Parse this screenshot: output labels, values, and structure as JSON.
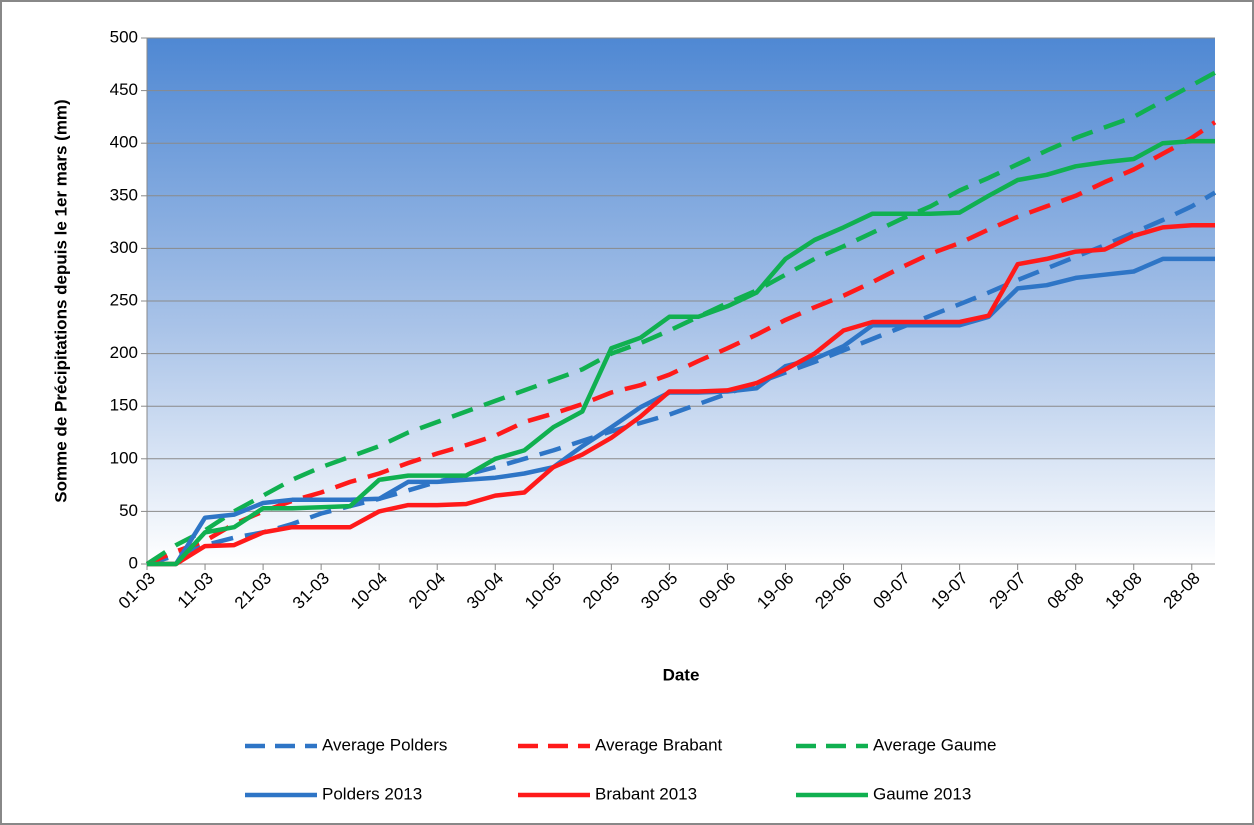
{
  "chart_data": {
    "type": "line",
    "y_label": "Somme de Précipitations depuis le 1er mars (mm)",
    "x_label": "Date",
    "x": [
      "01-03",
      "06-03",
      "11-03",
      "16-03",
      "21-03",
      "26-03",
      "31-03",
      "05-04",
      "10-04",
      "15-04",
      "20-04",
      "25-04",
      "30-04",
      "05-05",
      "10-05",
      "15-05",
      "20-05",
      "25-05",
      "30-05",
      "04-06",
      "09-06",
      "14-06",
      "19-06",
      "24-06",
      "29-06",
      "04-07",
      "09-07",
      "14-07",
      "19-07",
      "24-07",
      "29-07",
      "03-08",
      "08-08",
      "13-08",
      "18-08",
      "23-08",
      "28-08",
      "01-09"
    ],
    "xlim": [
      "01-03",
      "01-09"
    ],
    "xticks": [
      "01-03",
      "11-03",
      "21-03",
      "31-03",
      "10-04",
      "20-04",
      "30-04",
      "10-05",
      "20-05",
      "30-05",
      "09-06",
      "19-06",
      "29-06",
      "09-07",
      "19-07",
      "29-07",
      "08-08",
      "18-08",
      "28-08"
    ],
    "ylim": [
      0,
      500
    ],
    "yticks": [
      0,
      50,
      100,
      150,
      200,
      250,
      300,
      350,
      400,
      450,
      500
    ],
    "grid": true,
    "legend": "bottom",
    "series": [
      {
        "name": "Average Polders",
        "color": "#2e75c6",
        "style": "dashed",
        "values": [
          0,
          8,
          18,
          25,
          30,
          38,
          48,
          55,
          62,
          70,
          78,
          85,
          92,
          100,
          108,
          117,
          126,
          134,
          142,
          152,
          162,
          172,
          182,
          192,
          203,
          214,
          225,
          236,
          247,
          258,
          270,
          281,
          292,
          303,
          315,
          327,
          340,
          353
        ]
      },
      {
        "name": "Average Brabant",
        "color": "#ff1a1a",
        "style": "dashed",
        "values": [
          0,
          12,
          22,
          38,
          50,
          60,
          68,
          78,
          86,
          96,
          105,
          113,
          122,
          135,
          143,
          152,
          163,
          170,
          180,
          193,
          205,
          218,
          232,
          244,
          255,
          268,
          282,
          295,
          305,
          318,
          330,
          340,
          350,
          363,
          375,
          390,
          405,
          420
        ]
      },
      {
        "name": "Average Gaume",
        "color": "#10b050",
        "style": "dashed",
        "values": [
          0,
          18,
          32,
          50,
          65,
          80,
          92,
          102,
          112,
          125,
          135,
          145,
          155,
          165,
          175,
          185,
          200,
          210,
          222,
          235,
          248,
          260,
          275,
          290,
          302,
          315,
          328,
          340,
          355,
          367,
          380,
          393,
          405,
          415,
          425,
          440,
          455,
          467
        ]
      },
      {
        "name": "Polders 2013",
        "color": "#2e75c6",
        "style": "solid",
        "values": [
          0,
          0,
          44,
          47,
          58,
          61,
          61,
          61,
          62,
          78,
          78,
          80,
          82,
          86,
          92,
          112,
          130,
          149,
          163,
          163,
          164,
          167,
          188,
          195,
          207,
          227,
          227,
          227,
          227,
          235,
          262,
          265,
          272,
          275,
          278,
          290,
          290,
          290
        ]
      },
      {
        "name": "Brabant 2013",
        "color": "#ff1a1a",
        "style": "solid",
        "values": [
          0,
          0,
          17,
          18,
          30,
          35,
          35,
          35,
          50,
          56,
          56,
          57,
          65,
          68,
          92,
          104,
          120,
          140,
          164,
          164,
          165,
          172,
          185,
          200,
          222,
          230,
          230,
          230,
          230,
          236,
          285,
          290,
          297,
          299,
          312,
          320,
          322,
          322
        ]
      },
      {
        "name": "Gaume 2013",
        "color": "#10b050",
        "style": "solid",
        "values": [
          0,
          0,
          30,
          35,
          53,
          53,
          54,
          55,
          80,
          84,
          84,
          84,
          100,
          108,
          130,
          145,
          205,
          215,
          235,
          235,
          245,
          258,
          290,
          308,
          320,
          333,
          333,
          333,
          334,
          350,
          365,
          370,
          378,
          382,
          385,
          400,
          402,
          402
        ]
      }
    ]
  }
}
